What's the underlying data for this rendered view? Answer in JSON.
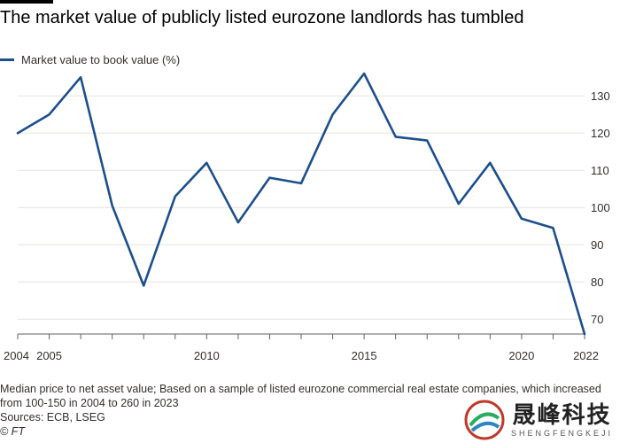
{
  "title": "The market value of publicly listed eurozone landlords has tumbled",
  "legend": {
    "label": "Market value to book value (%)"
  },
  "colors": {
    "line": "#1d4f8c",
    "grid": "#e6e3df",
    "axis": "#66605c",
    "text": "#33302e"
  },
  "footer": {
    "note": "Median price to net asset value; Based on a sample of listed eurozone commercial real estate companies, which increased from 100-150 in 2004 to 260 in 2023",
    "sources": "Sources: ECB, LSEG",
    "copyright": "© FT"
  },
  "watermark": {
    "cn": "晟峰科技",
    "en": "SHENGFENGKEJI"
  },
  "chart_data": {
    "type": "line",
    "x": [
      2004,
      2005,
      2006,
      2007,
      2008,
      2009,
      2010,
      2011,
      2012,
      2013,
      2014,
      2015,
      2016,
      2017,
      2018,
      2019,
      2020,
      2021,
      2022
    ],
    "series": [
      {
        "name": "Market value to book value (%)",
        "values": [
          120,
          125,
          135,
          100.5,
          79,
          103,
          112,
          96,
          108,
          106.5,
          125,
          136,
          119,
          118,
          101,
          112,
          97,
          94.5,
          66
        ]
      }
    ],
    "xticks": [
      2004,
      2005,
      2010,
      2015,
      2020,
      2022
    ],
    "yticks": [
      70,
      80,
      90,
      100,
      110,
      120,
      130
    ],
    "xlim": [
      2004,
      2022
    ],
    "ylim": [
      66,
      136
    ],
    "grid": true,
    "legend_position": "top-left",
    "xlabel": "",
    "ylabel": ""
  }
}
